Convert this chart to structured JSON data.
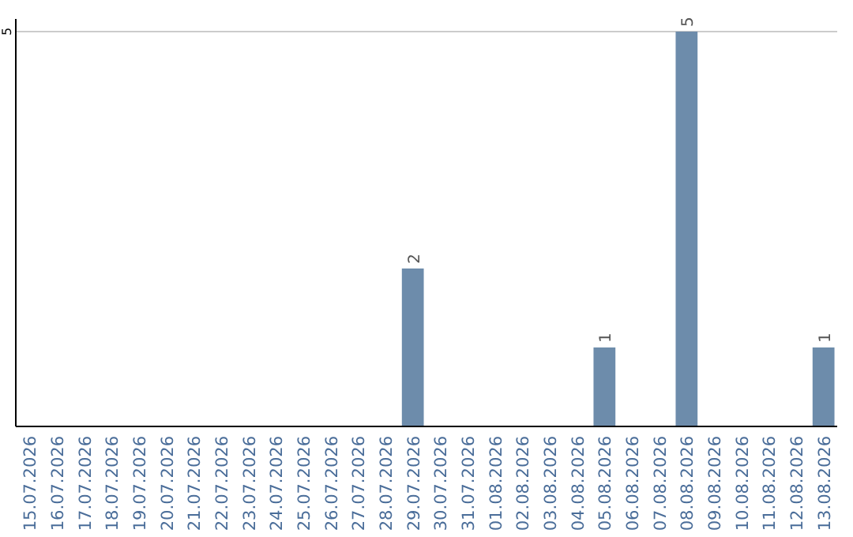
{
  "chart_data": {
    "type": "bar",
    "categories": [
      "15.07.2026",
      "16.07.2026",
      "17.07.2026",
      "18.07.2026",
      "19.07.2026",
      "20.07.2026",
      "21.07.2026",
      "22.07.2026",
      "23.07.2026",
      "24.07.2026",
      "25.07.2026",
      "26.07.2026",
      "27.07.2026",
      "28.07.2026",
      "29.07.2026",
      "30.07.2026",
      "31.07.2026",
      "01.08.2026",
      "02.08.2026",
      "03.08.2026",
      "04.08.2026",
      "05.08.2026",
      "06.08.2026",
      "07.08.2026",
      "08.08.2026",
      "09.08.2026",
      "10.08.2026",
      "11.08.2026",
      "12.08.2026",
      "13.08.2026"
    ],
    "values": [
      null,
      null,
      null,
      null,
      null,
      null,
      null,
      null,
      null,
      null,
      null,
      null,
      null,
      null,
      2,
      null,
      null,
      null,
      null,
      null,
      null,
      1,
      null,
      null,
      5,
      null,
      null,
      null,
      null,
      1
    ],
    "data_labels": true,
    "color": "#6d8cab",
    "ylim": [
      0,
      5
    ],
    "ref_lines": [
      {
        "axis": "y",
        "value": 5,
        "label": "5",
        "color": "#cccccc"
      }
    ]
  }
}
